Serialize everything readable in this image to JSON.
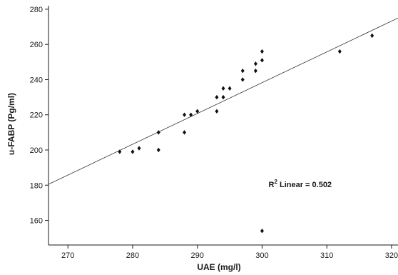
{
  "chart_data": {
    "type": "scatter",
    "xlabel": "UAE (mg/l)",
    "ylabel": "u-FABP (Pg/ml)",
    "xlim": [
      267,
      321
    ],
    "ylim": [
      146,
      282
    ],
    "x_ticks": [
      270,
      280,
      290,
      300,
      310,
      320
    ],
    "y_ticks": [
      160,
      180,
      200,
      220,
      240,
      260,
      280
    ],
    "points": [
      {
        "x": 278,
        "y": 199
      },
      {
        "x": 280,
        "y": 199
      },
      {
        "x": 281,
        "y": 201
      },
      {
        "x": 284,
        "y": 210
      },
      {
        "x": 284,
        "y": 200
      },
      {
        "x": 288,
        "y": 220
      },
      {
        "x": 288,
        "y": 210
      },
      {
        "x": 289,
        "y": 220
      },
      {
        "x": 290,
        "y": 222
      },
      {
        "x": 293,
        "y": 230
      },
      {
        "x": 293,
        "y": 222
      },
      {
        "x": 294,
        "y": 235
      },
      {
        "x": 294,
        "y": 230
      },
      {
        "x": 295,
        "y": 235
      },
      {
        "x": 297,
        "y": 245
      },
      {
        "x": 297,
        "y": 240
      },
      {
        "x": 299,
        "y": 249
      },
      {
        "x": 299,
        "y": 245
      },
      {
        "x": 300,
        "y": 256
      },
      {
        "x": 300,
        "y": 251
      },
      {
        "x": 300,
        "y": 154
      },
      {
        "x": 312,
        "y": 256
      },
      {
        "x": 317,
        "y": 265
      }
    ],
    "fit_line": {
      "type": "linear",
      "x": [
        267,
        321
      ],
      "y": [
        180.5,
        275
      ]
    },
    "annotation": {
      "prefix": "R",
      "superscript": "2",
      "suffix": " Linear = 0.502",
      "x": 301,
      "y": 180.5
    },
    "grid": false,
    "marker": "diamond",
    "colors": {
      "marker": "#111111",
      "line": "#333333",
      "axis": "#1a1a1a"
    }
  }
}
